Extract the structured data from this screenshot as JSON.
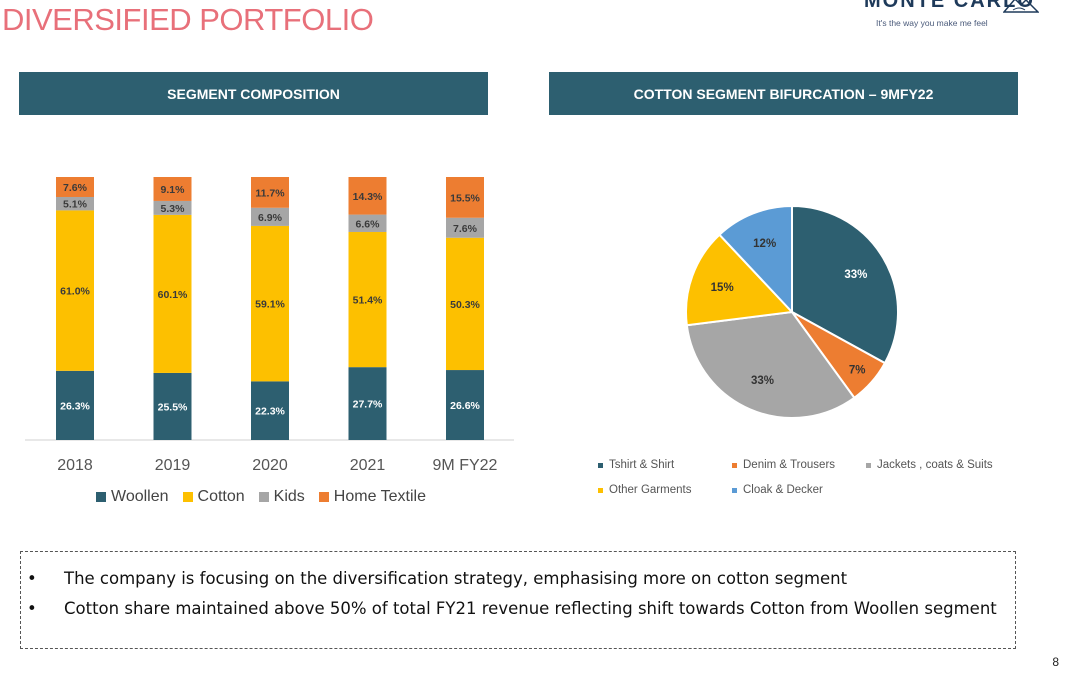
{
  "page": {
    "title": "DIVERSIFIED PORTFOLIO",
    "brand_name": "MONTE CARLO",
    "brand_tagline": "It's the way you make me feel",
    "page_number": "8"
  },
  "left_panel": {
    "header": "SEGMENT COMPOSITION"
  },
  "right_panel": {
    "header": "COTTON SEGMENT BIFURCATION – 9MFY22"
  },
  "colors": {
    "woollen": "#2d5f70",
    "cotton": "#fdc000",
    "kids": "#a6a6a6",
    "home_textile": "#ed7d31",
    "tshirt": "#2d5f70",
    "denim": "#ed7d31",
    "jackets": "#a6a6a6",
    "other": "#fdc000",
    "cloak": "#5b9bd5",
    "header_bg": "#2d5f70",
    "title": "#e8707a"
  },
  "chart_data": [
    {
      "type": "bar",
      "stacked": true,
      "title": "SEGMENT COMPOSITION",
      "categories": [
        "2018",
        "2019",
        "2020",
        "2021",
        "9M FY22"
      ],
      "series": [
        {
          "name": "Woollen",
          "values": [
            26.3,
            25.5,
            22.3,
            27.7,
            26.6
          ],
          "labels": [
            "26.3%",
            "25.5%",
            "22.3%",
            "27.7%",
            "26.6%"
          ]
        },
        {
          "name": "Cotton",
          "values": [
            61.0,
            60.1,
            59.1,
            51.4,
            50.3
          ],
          "labels": [
            "61.0%",
            "60.1%",
            "59.1%",
            "51.4%",
            "50.3%"
          ]
        },
        {
          "name": "Kids",
          "values": [
            5.1,
            5.3,
            6.9,
            6.6,
            7.6
          ],
          "labels": [
            "5.1%",
            "5.3%",
            "6.9%",
            "6.6%",
            "7.6%"
          ]
        },
        {
          "name": "Home Textile",
          "values": [
            7.6,
            9.1,
            11.7,
            14.3,
            15.5
          ],
          "labels": [
            "7.6%",
            "9.1%",
            "11.7%",
            "14.3%",
            "15.5%"
          ]
        }
      ],
      "ylim": [
        0,
        100
      ],
      "legend": "bottom"
    },
    {
      "type": "pie",
      "title": "COTTON SEGMENT BIFURCATION – 9MFY22",
      "slices": [
        {
          "name": "Tshirt & Shirt",
          "value": 33,
          "label": "33%"
        },
        {
          "name": "Denim & Trousers",
          "value": 7,
          "label": "7%"
        },
        {
          "name": "Jackets , coats & Suits",
          "value": 33,
          "label": "33%"
        },
        {
          "name": "Other Garments",
          "value": 15,
          "label": "15%"
        },
        {
          "name": "Cloak & Decker",
          "value": 12,
          "label": "12%"
        }
      ],
      "legend": "bottom"
    }
  ],
  "notes": [
    "The company is focusing on the diversification strategy, emphasising more on cotton segment",
    "Cotton share maintained above 50% of total FY21 revenue reflecting shift towards Cotton from Woollen segment"
  ]
}
